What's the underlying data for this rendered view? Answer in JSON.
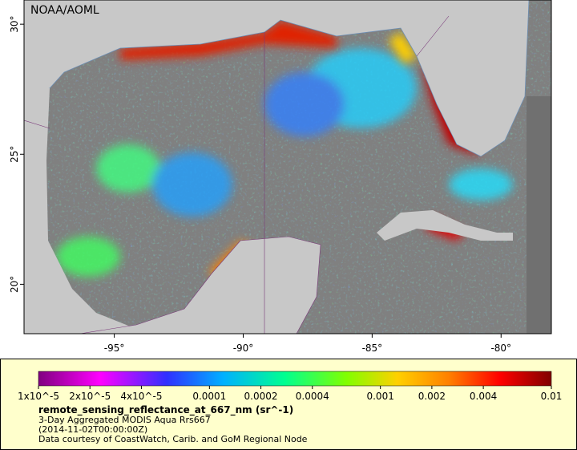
{
  "header": {
    "title": "NOAA/AOML"
  },
  "map": {
    "xlim": [
      -98.5,
      -78.05
    ],
    "ylim": [
      18.1,
      30.93
    ],
    "xticks": [
      {
        "value": -95,
        "label": "-95°"
      },
      {
        "value": -90,
        "label": "-90°"
      },
      {
        "value": -85,
        "label": "-85°"
      },
      {
        "value": -80,
        "label": "-80°"
      }
    ],
    "yticks": [
      {
        "value": 30,
        "label": "30°"
      },
      {
        "value": 25,
        "label": "25°"
      },
      {
        "value": 20,
        "label": "20°"
      }
    ]
  },
  "colorbar": {
    "scale": "log",
    "lim": [
      1e-05,
      0.01
    ],
    "ticks": [
      {
        "value": 1e-05,
        "label": "1x10^-5"
      },
      {
        "value": 2e-05,
        "label": "2x10^-5"
      },
      {
        "value": 4e-05,
        "label": "4x10^-5"
      },
      0.0001,
      0.0002,
      0.0004,
      0.001,
      0.002,
      0.004,
      0.01
    ]
  },
  "caption": {
    "variable": "remote_sensing_reflectance_at_667_nm (sr^-1)",
    "lines": [
      "3-Day Aggregated MODIS Aqua Rrs667",
      "(2014-11-02T00:00:00Z)",
      "Data courtesy of CoastWatch, Carib. and GoM Regional Node"
    ]
  }
}
